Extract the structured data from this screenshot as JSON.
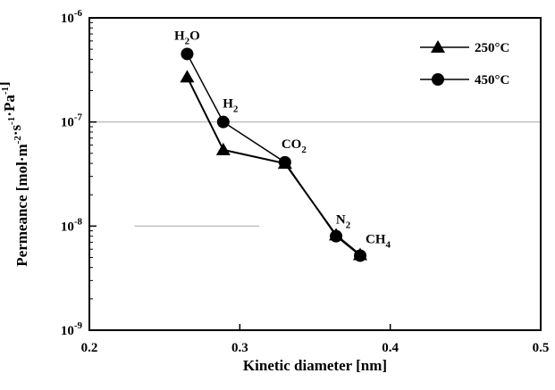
{
  "chart_data": {
    "type": "scatter",
    "xlabel": "Kinetic diameter [nm]",
    "ylabel": "Permeance [mol·m⁻²·s⁻¹·Pa⁻¹]",
    "xlim": [
      0.2,
      0.5
    ],
    "ylim": [
      1e-09,
      1e-06
    ],
    "yscale": "log",
    "x_ticks": [
      0.2,
      0.3,
      0.4,
      0.5
    ],
    "x_tick_labels": [
      "0.2",
      "0.3",
      "0.4",
      "0.5"
    ],
    "y_ticks": [
      1e-09,
      1e-08,
      1e-07,
      1e-06
    ],
    "y_tick_labels": [
      {
        "base": "10",
        "exp": "-9"
      },
      {
        "base": "10",
        "exp": "-8"
      },
      {
        "base": "10",
        "exp": "-7"
      },
      {
        "base": "10",
        "exp": "-6"
      }
    ],
    "legend_position": "top-right",
    "series": [
      {
        "name": "250°C",
        "marker": "triangle",
        "x": [
          0.265,
          0.289,
          0.33,
          0.364,
          0.38
        ],
        "y": [
          2.7e-07,
          5.4e-08,
          4e-08,
          8.2e-09,
          5.3e-09
        ]
      },
      {
        "name": "450°C",
        "marker": "circle",
        "x": [
          0.265,
          0.289,
          0.33,
          0.364,
          0.38
        ],
        "y": [
          4.5e-07,
          1e-07,
          4.1e-08,
          8e-09,
          5.2e-09
        ]
      }
    ],
    "point_labels": [
      {
        "text": "H2O",
        "x": 0.265,
        "y": 4.5e-07,
        "parts": [
          [
            "H",
            false
          ],
          [
            "2",
            true
          ],
          [
            "O",
            false
          ]
        ]
      },
      {
        "text": "H2",
        "x": 0.289,
        "y": 1e-07,
        "parts": [
          [
            "H",
            false
          ],
          [
            "2",
            true
          ]
        ]
      },
      {
        "text": "CO2",
        "x": 0.33,
        "y": 4.1e-08,
        "parts": [
          [
            "CO",
            false
          ],
          [
            "2",
            true
          ]
        ]
      },
      {
        "text": "N2",
        "x": 0.364,
        "y": 8e-09,
        "parts": [
          [
            "N",
            false
          ],
          [
            "2",
            true
          ]
        ]
      },
      {
        "text": "CH4",
        "x": 0.38,
        "y": 5.2e-09,
        "parts": [
          [
            "CH",
            false
          ],
          [
            "4",
            true
          ]
        ]
      }
    ],
    "reference_lines": [
      {
        "y": 1e-07,
        "x_range": [
          0.2,
          0.5
        ]
      },
      {
        "y": 1e-08,
        "x_range": [
          0.23,
          0.313
        ]
      }
    ]
  }
}
